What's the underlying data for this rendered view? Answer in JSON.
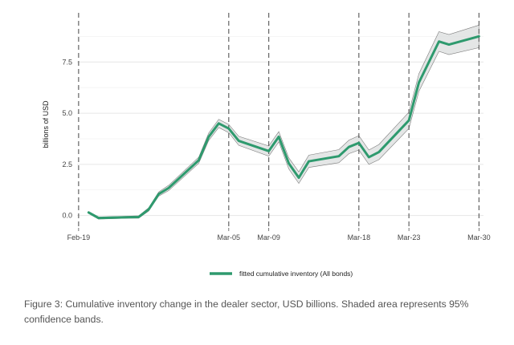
{
  "chart_data": {
    "type": "line",
    "title": "",
    "xlabel": "",
    "ylabel": "billions of USD",
    "ylim": [
      -0.6,
      9.9
    ],
    "yticks": [
      0.0,
      2.5,
      5.0,
      7.5
    ],
    "ytick_labels": [
      "0.0",
      "2.5",
      "5.0",
      "7.5"
    ],
    "x_range": [
      "Feb-19",
      "Mar-30"
    ],
    "xticks": [
      {
        "date": "2020-02-19",
        "label": "Feb-19"
      },
      {
        "date": "2020-03-05",
        "label": "Mar-05"
      },
      {
        "date": "2020-03-09",
        "label": "Mar-09"
      },
      {
        "date": "2020-03-18",
        "label": "Mar-18"
      },
      {
        "date": "2020-03-23",
        "label": "Mar-23"
      },
      {
        "date": "2020-03-30",
        "label": "Mar-30"
      }
    ],
    "vertical_dashed_lines": [
      "2020-02-19",
      "2020-03-05",
      "2020-03-09",
      "2020-03-18",
      "2020-03-23",
      "2020-03-30"
    ],
    "grid": true,
    "legend_position": "bottom",
    "series": [
      {
        "name": "fitted cumulative inventory (All bonds)",
        "color": "#2e9a6e",
        "band_color": "#d9dcdb",
        "points": [
          {
            "x": "2020-02-20",
            "y": 0.15,
            "lo": 0.1,
            "hi": 0.2
          },
          {
            "x": "2020-02-21",
            "y": -0.12,
            "lo": -0.17,
            "hi": -0.07
          },
          {
            "x": "2020-02-24",
            "y": -0.08,
            "lo": -0.13,
            "hi": -0.03
          },
          {
            "x": "2020-02-25",
            "y": -0.07,
            "lo": -0.13,
            "hi": -0.01
          },
          {
            "x": "2020-02-26",
            "y": 0.3,
            "lo": 0.22,
            "hi": 0.38
          },
          {
            "x": "2020-02-27",
            "y": 1.05,
            "lo": 0.95,
            "hi": 1.15
          },
          {
            "x": "2020-02-28",
            "y": 1.35,
            "lo": 1.22,
            "hi": 1.48
          },
          {
            "x": "2020-03-02",
            "y": 2.7,
            "lo": 2.55,
            "hi": 2.85
          },
          {
            "x": "2020-03-03",
            "y": 3.85,
            "lo": 3.67,
            "hi": 4.03
          },
          {
            "x": "2020-03-04",
            "y": 4.5,
            "lo": 4.3,
            "hi": 4.7
          },
          {
            "x": "2020-03-05",
            "y": 4.25,
            "lo": 4.05,
            "hi": 4.45
          },
          {
            "x": "2020-03-06",
            "y": 3.65,
            "lo": 3.43,
            "hi": 3.87
          },
          {
            "x": "2020-03-09",
            "y": 3.15,
            "lo": 2.9,
            "hi": 3.4
          },
          {
            "x": "2020-03-10",
            "y": 3.85,
            "lo": 3.6,
            "hi": 4.1
          },
          {
            "x": "2020-03-11",
            "y": 2.55,
            "lo": 2.28,
            "hi": 2.82
          },
          {
            "x": "2020-03-12",
            "y": 1.85,
            "lo": 1.57,
            "hi": 2.13
          },
          {
            "x": "2020-03-13",
            "y": 2.65,
            "lo": 2.35,
            "hi": 2.95
          },
          {
            "x": "2020-03-16",
            "y": 2.9,
            "lo": 2.58,
            "hi": 3.22
          },
          {
            "x": "2020-03-17",
            "y": 3.35,
            "lo": 3.02,
            "hi": 3.68
          },
          {
            "x": "2020-03-18",
            "y": 3.55,
            "lo": 3.2,
            "hi": 3.9
          },
          {
            "x": "2020-03-19",
            "y": 2.85,
            "lo": 2.5,
            "hi": 3.2
          },
          {
            "x": "2020-03-20",
            "y": 3.1,
            "lo": 2.73,
            "hi": 3.47
          },
          {
            "x": "2020-03-23",
            "y": 4.65,
            "lo": 4.25,
            "hi": 5.05
          },
          {
            "x": "2020-03-24",
            "y": 6.5,
            "lo": 6.07,
            "hi": 6.93
          },
          {
            "x": "2020-03-26",
            "y": 8.5,
            "lo": 8.02,
            "hi": 8.98
          },
          {
            "x": "2020-03-27",
            "y": 8.35,
            "lo": 7.86,
            "hi": 8.84
          },
          {
            "x": "2020-03-30",
            "y": 8.75,
            "lo": 8.2,
            "hi": 9.3
          }
        ]
      }
    ]
  },
  "caption": "Figure 3: Cumulative inventory change in the dealer sector, USD billions. Shaded area represents 95% confidence bands."
}
